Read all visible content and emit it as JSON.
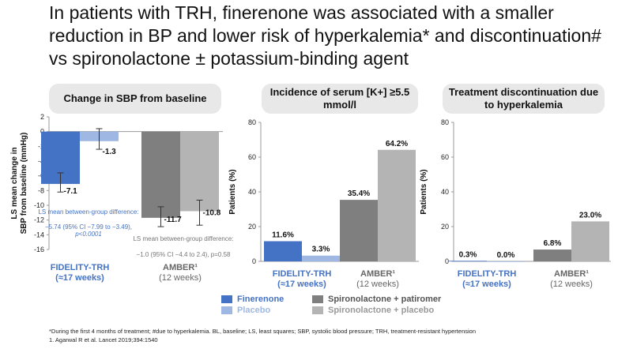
{
  "title": "In patients with TRH, finerenone was associated with a smaller reduction in BP and lower risk of hyperkalemia* and discontinuation# vs spironolactone ± potassium-binding agent",
  "panels": [
    {
      "heading": "Change in SBP from baseline"
    },
    {
      "heading": "Incidence of serum [K+] ≥5.5 mmol/l"
    },
    {
      "heading": "Treatment discontinuation due to hyperkalemia"
    }
  ],
  "chart_data": [
    {
      "type": "bar",
      "title": "Change in SBP from baseline",
      "ylabel": "LS mean change in SBP from baseline (mmHg)",
      "ylim": [
        -16,
        2
      ],
      "yticks": [
        "2",
        "0",
        "-2",
        "-4",
        "-6",
        "-8",
        "-10",
        "-12",
        "-14",
        "-16"
      ],
      "categories": [
        {
          "name": "FIDELITY-TRH",
          "sub": "(≈17 weeks)"
        },
        {
          "name": "AMBER¹",
          "sub": "(12 weeks)"
        }
      ],
      "bars": [
        {
          "group": 0,
          "series": "Finerenone",
          "value": -7.1,
          "label": "-7.1",
          "err_low": -8.2,
          "err_high": -5.6
        },
        {
          "group": 0,
          "series": "Placebo",
          "value": -1.3,
          "label": "-1.3",
          "err_low": -2.4,
          "err_high": 0.4
        },
        {
          "group": 1,
          "series": "Spironolactone + patiromer",
          "value": -11.7,
          "label": "-11.7",
          "err_low": -12.9,
          "err_high": -10.2
        },
        {
          "group": 1,
          "series": "Spironolactone + placebo",
          "value": -10.8,
          "label": "-10.8",
          "err_low": -12.7,
          "err_high": -9.3
        }
      ],
      "annotations": [
        "LS mean between-group difference:",
        "−5.74 (95% CI −7.99 to −3.49),",
        "p<0.0001",
        "LS mean between-group difference:",
        "−1.0 (95% CI −4.4 to 2.4), p=0.58"
      ]
    },
    {
      "type": "bar",
      "title": "Incidence of serum [K+] ≥5.5 mmol/l",
      "ylabel": "Patients (%)",
      "ylim": [
        0,
        80
      ],
      "yticks": [
        "80",
        "60",
        "40",
        "20",
        "0"
      ],
      "categories": [
        {
          "name": "FIDELITY-TRH",
          "sub": "(≈17 weeks)"
        },
        {
          "name": "AMBER¹",
          "sub": "(12 weeks)"
        }
      ],
      "bars": [
        {
          "group": 0,
          "series": "Finerenone",
          "value": 11.6,
          "label": "11.6%"
        },
        {
          "group": 0,
          "series": "Placebo",
          "value": 3.3,
          "label": "3.3%"
        },
        {
          "group": 1,
          "series": "Spironolactone + patiromer",
          "value": 35.4,
          "label": "35.4%"
        },
        {
          "group": 1,
          "series": "Spironolactone + placebo",
          "value": 64.2,
          "label": "64.2%"
        }
      ]
    },
    {
      "type": "bar",
      "title": "Treatment discontinuation due to hyperkalemia",
      "ylabel": "Patients (%)",
      "ylim": [
        0,
        80
      ],
      "yticks": [
        "80",
        "60",
        "40",
        "20",
        "0"
      ],
      "categories": [
        {
          "name": "FIDELITY-TRH",
          "sub": "(≈17 weeks)"
        },
        {
          "name": "AMBER¹",
          "sub": "(12 weeks)"
        }
      ],
      "bars": [
        {
          "group": 0,
          "series": "Finerenone",
          "value": 0.3,
          "label": "0.3%"
        },
        {
          "group": 0,
          "series": "Placebo",
          "value": 0.0,
          "label": "0.0%"
        },
        {
          "group": 1,
          "series": "Spironolactone + patiromer",
          "value": 6.8,
          "label": "6.8%"
        },
        {
          "group": 1,
          "series": "Spironolactone + placebo",
          "value": 23.0,
          "label": "23.0%"
        }
      ]
    }
  ],
  "legend": [
    {
      "name": "Finerenone",
      "color": "#4472c4"
    },
    {
      "name": "Placebo",
      "color": "#9fb8e3"
    },
    {
      "name": "Spironolactone + patiromer",
      "color": "#7f7f7f"
    },
    {
      "name": "Spironolactone + placebo",
      "color": "#b4b4b4"
    }
  ],
  "colors": {
    "Finerenone": "#4472c4",
    "Placebo": "#9fb8e3",
    "Spironolactone + patiromer": "#7f7f7f",
    "Spironolactone + placebo": "#b4b4b4",
    "fidelity_label": "#4472c4",
    "amber_label": "#666666",
    "annotation_blue": "#4472c4",
    "annotation_grey": "#777777"
  },
  "footnotes": [
    "*During the first 4 months of treatment; #due to hyperkalemia. BL, baseline; LS, least squares; SBP, systolic blood pressure; TRH, treatment-resistant hypertension",
    "1. Agarwal R et al. Lancet 2019;394:1540"
  ]
}
